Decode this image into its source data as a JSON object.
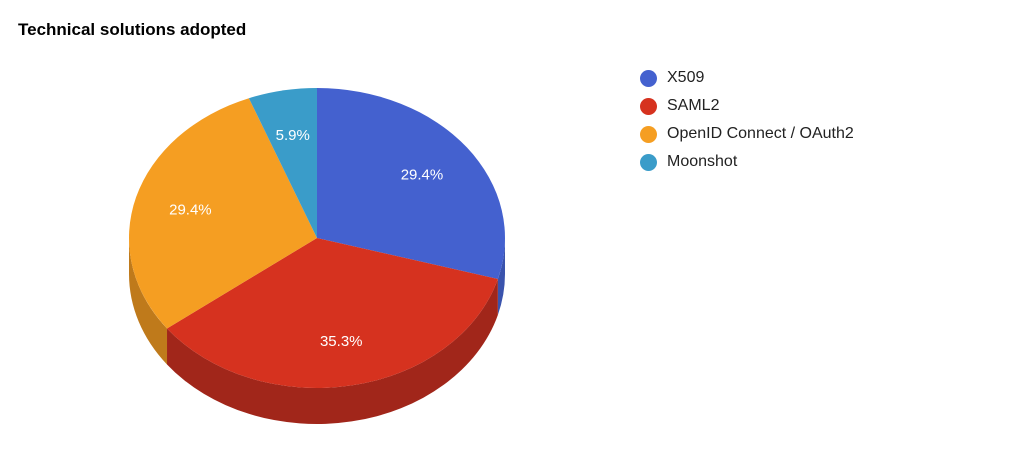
{
  "chart_data": {
    "type": "pie",
    "title": "Technical solutions adopted",
    "slices": [
      {
        "label": "X509",
        "value": 29.4,
        "display": "29.4%",
        "color": "#4461cf",
        "side": "#3a53ad"
      },
      {
        "label": "SAML2",
        "value": 35.3,
        "display": "35.3%",
        "color": "#d6321f",
        "side": "#a1261a"
      },
      {
        "label": "OpenID Connect / OAuth2",
        "value": 29.4,
        "display": "29.4%",
        "color": "#f59e22",
        "side": "#bf7a1b"
      },
      {
        "label": "Moonshot",
        "value": 5.9,
        "display": "5.9%",
        "color": "#3a9cc9",
        "side": "#2d7aa0"
      }
    ],
    "legend_position": "right",
    "three_d": true
  }
}
